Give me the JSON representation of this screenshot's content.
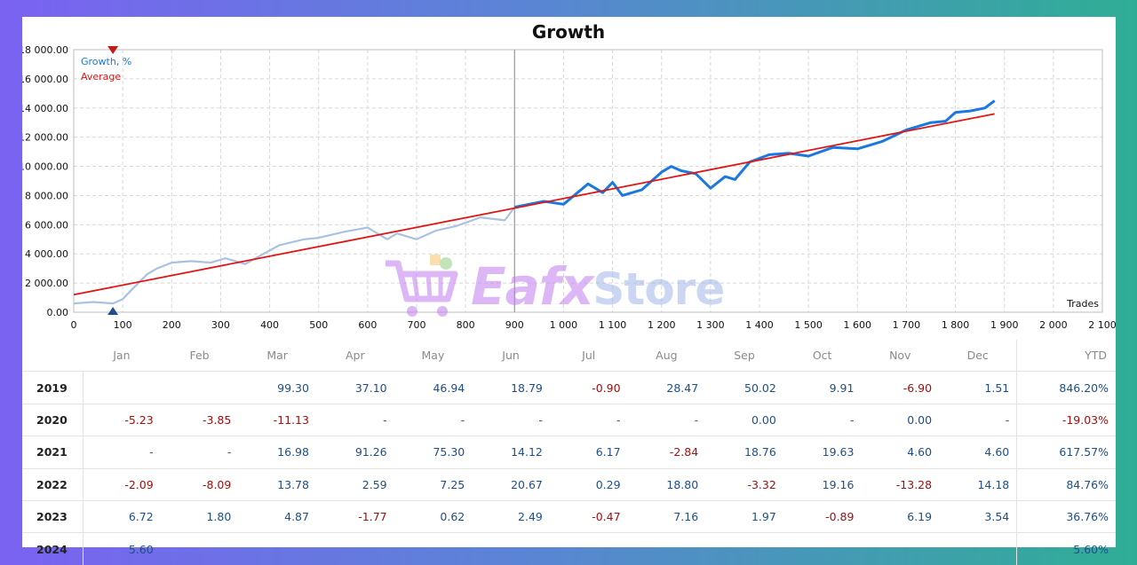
{
  "chart_data": {
    "type": "line",
    "title": "Growth",
    "xlabel": "Trades",
    "ylabel": "",
    "xlim": [
      0,
      2100
    ],
    "ylim": [
      0,
      18000
    ],
    "x_ticks": [
      "0",
      "100",
      "200",
      "300",
      "400",
      "500",
      "600",
      "700",
      "800",
      "900",
      "1 000",
      "1 100",
      "1 200",
      "1 300",
      "1 400",
      "1 500",
      "1 600",
      "1 700",
      "1 800",
      "1 900",
      "2 000",
      "2 100"
    ],
    "y_ticks": [
      "0.00",
      "2 000.00",
      "4 000.00",
      "6 000.00",
      "8 000.00",
      "10 000.00",
      "12 000.00",
      "14 000.00",
      "16 000.00",
      "18 000.00"
    ],
    "legend_position": "top-left",
    "grid": true,
    "colors": {
      "growth_past": "#a9c2e0",
      "growth": "#1a78e0",
      "average": "#e01515",
      "marker_top": "#c41a1a",
      "marker_bottom": "#1e4f8a"
    },
    "series": [
      {
        "name": "Growth, %",
        "x": [
          0,
          40,
          80,
          100,
          120,
          150,
          170,
          200,
          240,
          280,
          310,
          350,
          420,
          470,
          500,
          550,
          600,
          640,
          660,
          700,
          740,
          780,
          830,
          880,
          900,
          960,
          1000,
          1050,
          1080,
          1100,
          1120,
          1160,
          1200,
          1220,
          1240,
          1270,
          1300,
          1330,
          1350,
          1380,
          1420,
          1460,
          1500,
          1550,
          1600,
          1650,
          1700,
          1750,
          1780,
          1800,
          1830,
          1860,
          1880
        ],
        "y": [
          600,
          700,
          600,
          900,
          1600,
          2600,
          3000,
          3400,
          3500,
          3400,
          3700,
          3300,
          4600,
          5000,
          5100,
          5500,
          5800,
          5000,
          5400,
          5000,
          5600,
          5900,
          6500,
          6300,
          7200,
          7600,
          7400,
          8800,
          8200,
          8900,
          8000,
          8400,
          9600,
          10000,
          9700,
          9500,
          8500,
          9300,
          9100,
          10300,
          10800,
          10900,
          10700,
          11300,
          11200,
          11700,
          12500,
          13000,
          13100,
          13700,
          13800,
          14000,
          14500
        ]
      },
      {
        "name": "Average",
        "x": [
          0,
          1880
        ],
        "y": [
          1200,
          13600
        ]
      }
    ],
    "split_x": 900
  },
  "table": {
    "months": [
      "Jan",
      "Feb",
      "Mar",
      "Apr",
      "May",
      "Jun",
      "Jul",
      "Aug",
      "Sep",
      "Oct",
      "Nov",
      "Dec"
    ],
    "ytd_label": "YTD",
    "rows": [
      {
        "year": "2019",
        "values": [
          "",
          "",
          "99.30",
          "37.10",
          "46.94",
          "18.79",
          "-0.90",
          "28.47",
          "50.02",
          "9.91",
          "-6.90",
          "1.51"
        ],
        "ytd": "846.20%"
      },
      {
        "year": "2020",
        "values": [
          "-5.23",
          "-3.85",
          "-11.13",
          "-",
          "-",
          "-",
          "-",
          "-",
          "0.00",
          "-",
          "0.00",
          "-"
        ],
        "ytd": "-19.03%"
      },
      {
        "year": "2021",
        "values": [
          "-",
          "-",
          "16.98",
          "91.26",
          "75.30",
          "14.12",
          "6.17",
          "-2.84",
          "18.76",
          "19.63",
          "4.60",
          "4.60"
        ],
        "ytd": "617.57%"
      },
      {
        "year": "2022",
        "values": [
          "-2.09",
          "-8.09",
          "13.78",
          "2.59",
          "7.25",
          "20.67",
          "0.29",
          "18.80",
          "-3.32",
          "19.16",
          "-13.28",
          "14.18"
        ],
        "ytd": "84.76%"
      },
      {
        "year": "2023",
        "values": [
          "6.72",
          "1.80",
          "4.87",
          "-1.77",
          "0.62",
          "2.49",
          "-0.47",
          "7.16",
          "1.97",
          "-0.89",
          "6.19",
          "3.54"
        ],
        "ytd": "36.76%"
      },
      {
        "year": "2024",
        "values": [
          "5.60",
          "",
          "",
          "",
          "",
          "",
          "",
          "",
          "",
          "",
          "",
          ""
        ],
        "ytd": "5.60%"
      }
    ]
  },
  "watermark": {
    "brand": "Eafx",
    "suffix": "Store",
    "icon": "shopping-cart-icon"
  }
}
